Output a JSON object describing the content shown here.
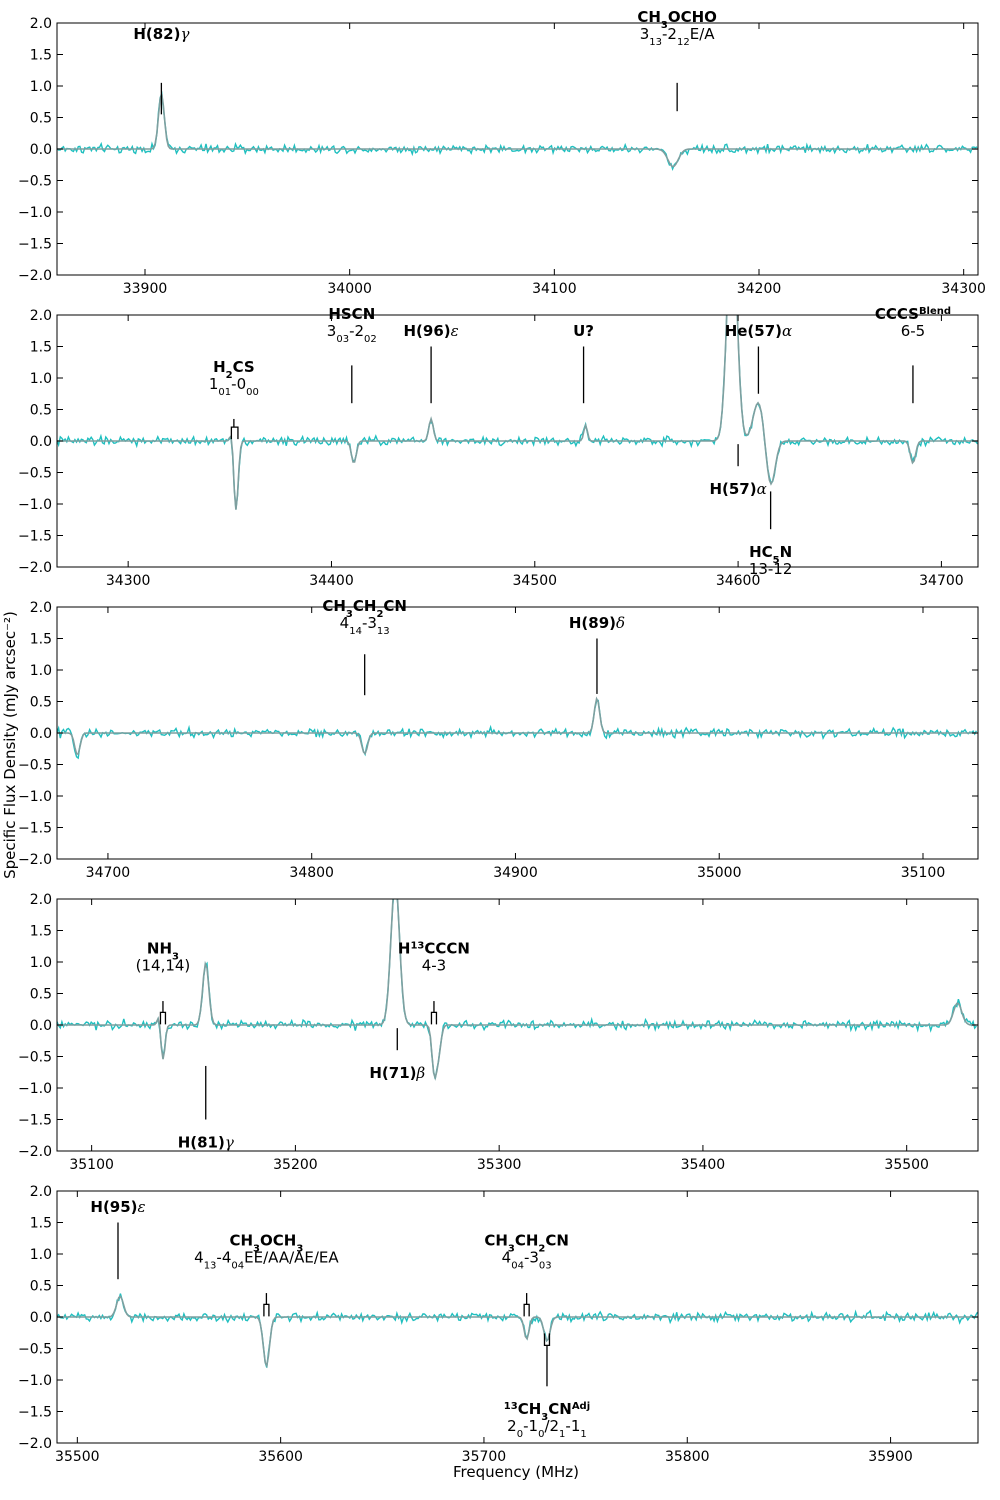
{
  "figure": {
    "xlabel": "Frequency (MHz)",
    "ylabel": "Specific Flux Density (mJy arcsec⁻²)"
  },
  "colors": {
    "data_line": "#1fbfbf",
    "model_line": "#7f9f9f",
    "annotation": "#000000",
    "frame": "#000000"
  },
  "chart_data": [
    {
      "type": "line",
      "title": "",
      "xlim": [
        33857,
        34307
      ],
      "ylim": [
        -2.0,
        2.0
      ],
      "xticks": [
        33900,
        34000,
        34100,
        34200,
        34300
      ],
      "yticks": [
        -2.0,
        -1.5,
        -1.0,
        -0.5,
        0.0,
        0.5,
        1.0,
        1.5,
        2.0
      ],
      "series": [
        {
          "role": "data"
        },
        {
          "role": "model",
          "features": [
            {
              "x": 33908,
              "amp": 0.88,
              "w": 1.4
            },
            {
              "x": 34158,
              "amp": -0.28,
              "w": 2.5
            }
          ]
        }
      ],
      "annotations": [
        {
          "name": [
            [
              "H(82)",
              ""
            ],
            [
              "γ",
              "greek"
            ]
          ],
          "trans": [],
          "x": 33908,
          "line": [
            0.55,
            1.05
          ],
          "pos": "above",
          "textY": 1.7
        },
        {
          "name": [
            [
              "CH",
              ""
            ],
            [
              "3",
              "sub"
            ],
            [
              "OCHO",
              ""
            ]
          ],
          "trans": [
            [
              "3",
              ""
            ],
            [
              "13",
              "sub"
            ],
            [
              "-2",
              ""
            ],
            [
              "12",
              "sub"
            ],
            [
              "E/A",
              ""
            ]
          ],
          "x": 34160,
          "line": [
            0.6,
            1.05
          ],
          "pos": "above",
          "textY": 1.7
        }
      ]
    },
    {
      "type": "line",
      "title": "",
      "xlim": [
        34265,
        34718
      ],
      "ylim": [
        -2.0,
        2.0
      ],
      "xticks": [
        34300,
        34400,
        34500,
        34600,
        34700
      ],
      "yticks": [
        -2.0,
        -1.5,
        -1.0,
        -0.5,
        0.0,
        0.5,
        1.0,
        1.5,
        2.0
      ],
      "series": [
        {
          "role": "data"
        },
        {
          "role": "model",
          "features": [
            {
              "x": 34351,
              "amp": 0.2,
              "w": 0.8
            },
            {
              "x": 34353,
              "amp": -1.1,
              "w": 1.1
            },
            {
              "x": 34411,
              "amp": -0.35,
              "w": 1.2
            },
            {
              "x": 34449,
              "amp": 0.35,
              "w": 1.1
            },
            {
              "x": 34525,
              "amp": 0.25,
              "w": 0.9
            },
            {
              "x": 34597,
              "amp": 3.6,
              "w": 2.4
            },
            {
              "x": 34610,
              "amp": 0.62,
              "w": 2.6
            },
            {
              "x": 34616,
              "amp": -0.72,
              "w": 2.2
            },
            {
              "x": 34686,
              "amp": -0.35,
              "w": 1.3
            }
          ]
        }
      ],
      "annotations": [
        {
          "name": [
            [
              "H",
              ""
            ],
            [
              "2",
              "sub"
            ],
            [
              "CS",
              ""
            ]
          ],
          "trans": [
            [
              "1",
              ""
            ],
            [
              "01",
              "sub"
            ],
            [
              "-0",
              ""
            ],
            [
              "00",
              "sub"
            ]
          ],
          "x": 34352,
          "bracket": [
            34351,
            34354
          ],
          "line": [
            0.22,
            0.35
          ],
          "pos": "above",
          "textY": 0.78
        },
        {
          "name": [
            [
              "HSCN",
              ""
            ]
          ],
          "trans": [
            [
              "3",
              ""
            ],
            [
              "03",
              "sub"
            ],
            [
              "-2",
              ""
            ],
            [
              "02",
              "sub"
            ]
          ],
          "x": 34410,
          "line": [
            0.6,
            1.2
          ],
          "pos": "above",
          "textY": 1.62
        },
        {
          "name": [
            [
              "H(96)",
              ""
            ],
            [
              "ε",
              "greek"
            ]
          ],
          "trans": [],
          "x": 34449,
          "line": [
            0.6,
            1.5
          ],
          "pos": "above",
          "textY": 1.62
        },
        {
          "name": [
            [
              "U?",
              ""
            ]
          ],
          "trans": [],
          "x": 34524,
          "line": [
            0.6,
            1.5
          ],
          "pos": "above",
          "textY": 1.62
        },
        {
          "name": [
            [
              "He(57)",
              ""
            ],
            [
              "α",
              "greek"
            ]
          ],
          "trans": [],
          "x": 34610,
          "line": [
            0.75,
            1.5
          ],
          "pos": "above",
          "textY": 1.62
        },
        {
          "name": [
            [
              "CCCS",
              ""
            ],
            [
              "Blend",
              "sup"
            ]
          ],
          "trans": [
            [
              "6-5",
              ""
            ]
          ],
          "x": 34686,
          "line": [
            0.6,
            1.2
          ],
          "pos": "above",
          "textY": 1.62
        },
        {
          "name": [
            [
              "H(57)",
              ""
            ],
            [
              "α",
              "greek"
            ]
          ],
          "trans": [],
          "x": 34600,
          "line": [
            -0.05,
            -0.4
          ],
          "pos": "below",
          "textY": -0.62
        },
        {
          "name": [
            [
              "HC",
              ""
            ],
            [
              "5",
              "sub"
            ],
            [
              "N",
              ""
            ]
          ],
          "trans": [
            [
              "13-12",
              ""
            ]
          ],
          "x": 34616,
          "line": [
            -0.8,
            -1.4
          ],
          "pos": "below",
          "textY": -1.62
        }
      ]
    },
    {
      "type": "line",
      "title": "",
      "xlim": [
        34675,
        35127
      ],
      "ylim": [
        -2.0,
        2.0
      ],
      "xticks": [
        34700,
        34800,
        34900,
        35000,
        35100
      ],
      "yticks": [
        -2.0,
        -1.5,
        -1.0,
        -0.5,
        0.0,
        0.5,
        1.0,
        1.5,
        2.0
      ],
      "series": [
        {
          "role": "data"
        },
        {
          "role": "model",
          "features": [
            {
              "x": 34685,
              "amp": -0.35,
              "w": 1.3
            },
            {
              "x": 34826,
              "amp": -0.33,
              "w": 1.4
            },
            {
              "x": 34940,
              "amp": 0.55,
              "w": 1.3
            }
          ]
        }
      ],
      "annotations": [
        {
          "name": [
            [
              "CH",
              ""
            ],
            [
              "3",
              "sub"
            ],
            [
              "CH",
              ""
            ],
            [
              "2",
              "sub"
            ],
            [
              "CN",
              ""
            ]
          ],
          "trans": [
            [
              "4",
              ""
            ],
            [
              "14",
              "sub"
            ],
            [
              "-3",
              ""
            ],
            [
              "13",
              "sub"
            ]
          ],
          "x": 34826,
          "line": [
            0.6,
            1.25
          ],
          "pos": "above",
          "textY": 1.62
        },
        {
          "name": [
            [
              "H(89)",
              ""
            ],
            [
              "δ",
              "greek"
            ]
          ],
          "trans": [],
          "x": 34940,
          "line": [
            0.62,
            1.5
          ],
          "pos": "above",
          "textY": 1.62
        }
      ]
    },
    {
      "type": "line",
      "title": "",
      "xlim": [
        35083,
        35535
      ],
      "ylim": [
        -2.0,
        2.0
      ],
      "xticks": [
        35100,
        35200,
        35300,
        35400,
        35500
      ],
      "yticks": [
        -2.0,
        -1.5,
        -1.0,
        -0.5,
        0.0,
        0.5,
        1.0,
        1.5,
        2.0
      ],
      "series": [
        {
          "role": "data"
        },
        {
          "role": "model",
          "features": [
            {
              "x": 35133,
              "amp": 0.15,
              "w": 0.8
            },
            {
              "x": 35135,
              "amp": -0.55,
              "w": 1.0
            },
            {
              "x": 35156,
              "amp": 0.98,
              "w": 1.5
            },
            {
              "x": 35249,
              "amp": 2.3,
              "w": 2.1
            },
            {
              "x": 35268,
              "amp": -0.65,
              "w": 1.1
            },
            {
              "x": 35270,
              "amp": -0.5,
              "w": 1.3
            },
            {
              "x": 35525,
              "amp": 0.35,
              "w": 2.0
            }
          ]
        }
      ],
      "annotations": [
        {
          "name": [
            [
              "NH",
              ""
            ],
            [
              "3",
              "sub"
            ]
          ],
          "trans": [
            [
              "(14,14)",
              ""
            ]
          ],
          "x": 35135,
          "bracket": [
            35134,
            35136
          ],
          "line": [
            0.2,
            0.38
          ],
          "pos": "above",
          "textY": 0.82
        },
        {
          "name": [
            [
              "H",
              ""
            ],
            [
              "13",
              "sup"
            ],
            [
              "CCCN",
              ""
            ]
          ],
          "trans": [
            [
              "4-3",
              ""
            ]
          ],
          "x": 35268,
          "bracket": [
            35267,
            35269
          ],
          "line": [
            0.2,
            0.38
          ],
          "pos": "above",
          "textY": 0.82
        },
        {
          "name": [
            [
              "H(71)",
              ""
            ],
            [
              "β",
              "greek"
            ]
          ],
          "trans": [],
          "x": 35250,
          "line": [
            -0.05,
            -0.4
          ],
          "pos": "below",
          "textY": -0.62
        },
        {
          "name": [
            [
              "H(81)",
              ""
            ],
            [
              "γ",
              "greek"
            ]
          ],
          "trans": [],
          "x": 35156,
          "line": [
            -0.65,
            -1.5
          ],
          "pos": "below",
          "textY": -1.72
        }
      ]
    },
    {
      "type": "line",
      "title": "",
      "xlim": [
        35490,
        35943
      ],
      "ylim": [
        -2.0,
        2.0
      ],
      "xticks": [
        35500,
        35600,
        35700,
        35800,
        35900
      ],
      "yticks": [
        -2.0,
        -1.5,
        -1.0,
        -0.5,
        0.0,
        0.5,
        1.0,
        1.5,
        2.0
      ],
      "series": [
        {
          "role": "data"
        },
        {
          "role": "model",
          "features": [
            {
              "x": 35521,
              "amp": 0.33,
              "w": 1.7
            },
            {
              "x": 35593,
              "amp": -0.78,
              "w": 1.5
            },
            {
              "x": 35721,
              "amp": -0.35,
              "w": 1.2
            },
            {
              "x": 35731,
              "amp": -0.38,
              "w": 1.5
            }
          ]
        }
      ],
      "annotations": [
        {
          "name": [
            [
              "H(95)",
              ""
            ],
            [
              "ε",
              "greek"
            ]
          ],
          "trans": [],
          "x": 35520,
          "line": [
            0.6,
            1.5
          ],
          "pos": "above",
          "textY": 1.62
        },
        {
          "name": [
            [
              "CH",
              ""
            ],
            [
              "3",
              "sub"
            ],
            [
              "OCH",
              ""
            ],
            [
              "3",
              "sub"
            ]
          ],
          "trans": [
            [
              "4",
              ""
            ],
            [
              "13",
              "sub"
            ],
            [
              "-4",
              ""
            ],
            [
              "04",
              "sub"
            ],
            [
              "EE/AA/AE/EA",
              ""
            ]
          ],
          "x": 35593,
          "bracket": [
            35592,
            35594
          ],
          "line": [
            0.2,
            0.38
          ],
          "pos": "above",
          "textY": 0.82
        },
        {
          "name": [
            [
              "CH",
              ""
            ],
            [
              "3",
              "sub"
            ],
            [
              "CH",
              ""
            ],
            [
              "2",
              "sub"
            ],
            [
              "CN",
              ""
            ]
          ],
          "trans": [
            [
              "4",
              ""
            ],
            [
              "04",
              "sub"
            ],
            [
              "-3",
              ""
            ],
            [
              "03",
              "sub"
            ]
          ],
          "x": 35721,
          "bracket": [
            35720,
            35722
          ],
          "line": [
            0.2,
            0.38
          ],
          "pos": "above",
          "textY": 0.82
        },
        {
          "name": [
            [
              "13",
              "sup"
            ],
            [
              "CH",
              ""
            ],
            [
              "3",
              "sub"
            ],
            [
              "CN",
              ""
            ],
            [
              "Adj",
              "sup"
            ]
          ],
          "trans": [
            [
              "2",
              ""
            ],
            [
              "0",
              "sub"
            ],
            [
              "-1",
              ""
            ],
            [
              "0",
              "sub"
            ],
            [
              "/2",
              ""
            ],
            [
              "1",
              "sub"
            ],
            [
              "-1",
              ""
            ],
            [
              "1",
              "sub"
            ]
          ],
          "x": 35731,
          "bracket": [
            35730,
            35732
          ],
          "bracketDir": "down",
          "line": [
            -0.45,
            -1.1
          ],
          "pos": "below",
          "textY": -1.32
        }
      ]
    }
  ]
}
